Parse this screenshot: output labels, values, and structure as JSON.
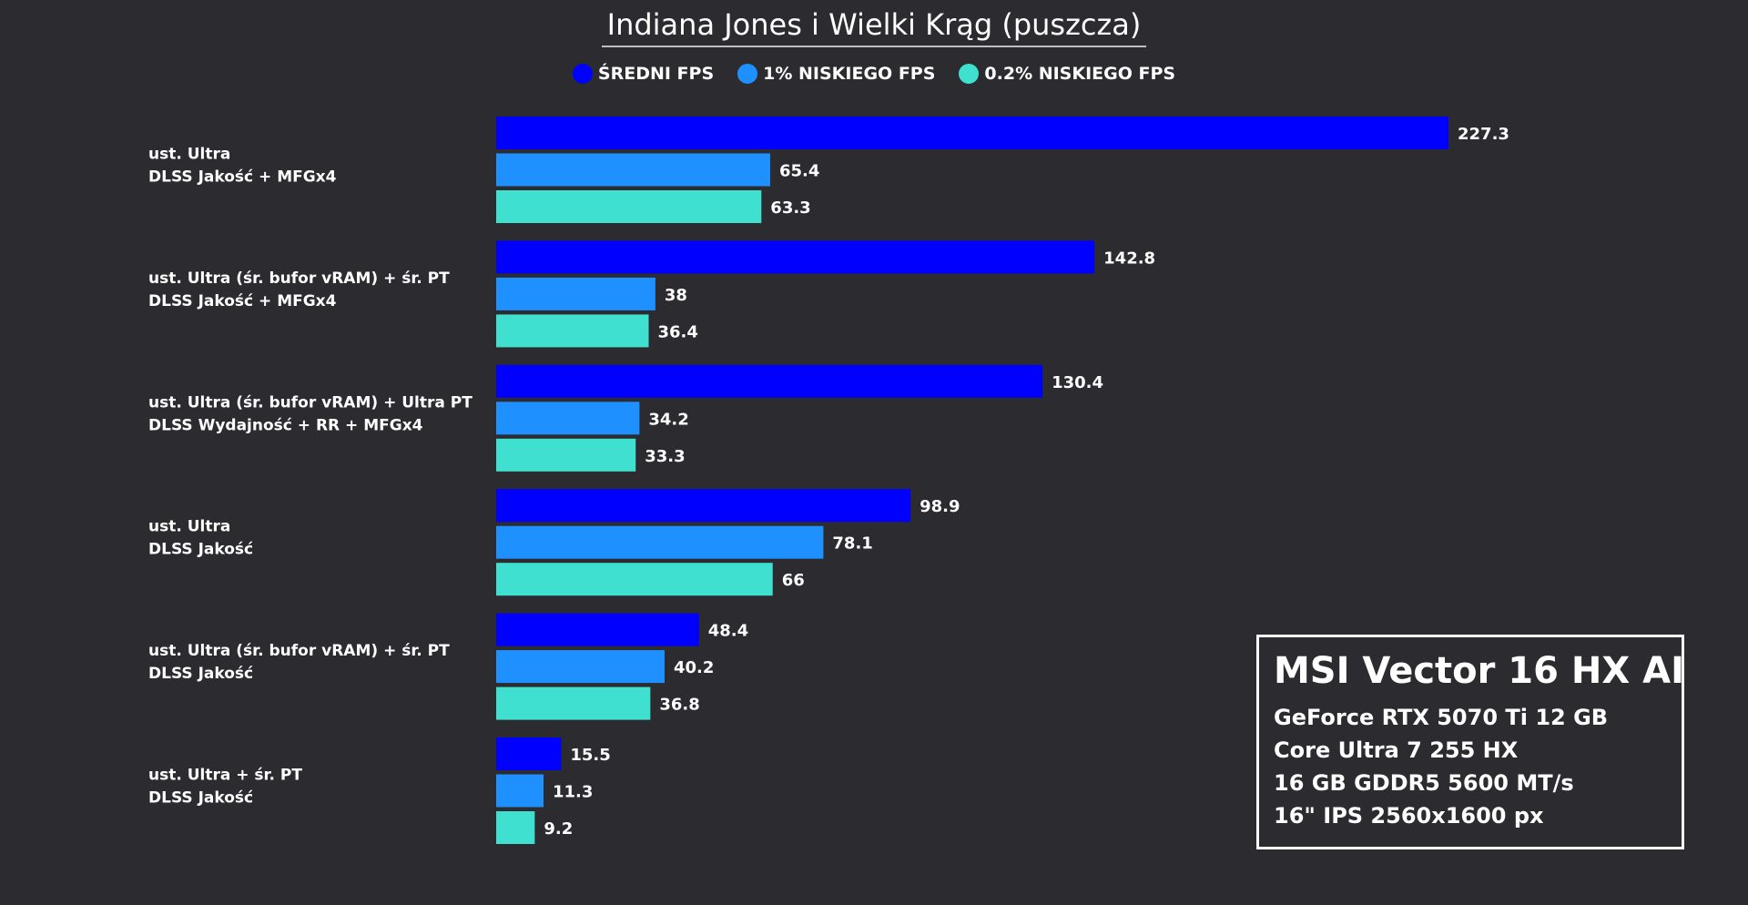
{
  "chart_data": {
    "type": "bar",
    "orientation": "horizontal",
    "title": "Indiana Jones i Wielki Krąg (puszcza)",
    "categories": [
      [
        "ust. Ultra",
        "DLSS Jakość + MFGx4"
      ],
      [
        "ust. Ultra (śr. bufor vRAM) + śr. PT",
        "DLSS Jakość + MFGx4"
      ],
      [
        "ust. Ultra (śr. bufor vRAM) + Ultra PT",
        "DLSS Wydajność + RR + MFGx4"
      ],
      [
        "ust. Ultra",
        "DLSS Jakość"
      ],
      [
        "ust. Ultra (śr. bufor vRAM) + śr. PT",
        "DLSS Jakość"
      ],
      [
        "ust. Ultra + śr. PT",
        "DLSS Jakość"
      ]
    ],
    "series": [
      {
        "name": "ŚREDNI FPS",
        "color": "#0000ff",
        "values": [
          227.3,
          142.8,
          130.4,
          98.9,
          48.4,
          15.5
        ]
      },
      {
        "name": "1% NISKIEGO FPS",
        "color": "#1e90ff",
        "values": [
          65.4,
          38,
          34.2,
          78.1,
          40.2,
          11.3
        ]
      },
      {
        "name": "0.2% NISKIEGO FPS",
        "color": "#40e0d0",
        "values": [
          63.3,
          36.4,
          33.3,
          66,
          36.8,
          9.2
        ]
      }
    ],
    "xlim": [
      0,
      240
    ],
    "grid": false,
    "legend_position": "top-center",
    "value_labels": true
  },
  "spec_box": {
    "model": "MSI Vector 16 HX AI",
    "lines": [
      "GeForce RTX 5070 Ti 12 GB",
      "Core Ultra 7 255 HX",
      "16 GB GDDR5 5600 MT/s",
      "16\" IPS 2560x1600 px"
    ]
  }
}
